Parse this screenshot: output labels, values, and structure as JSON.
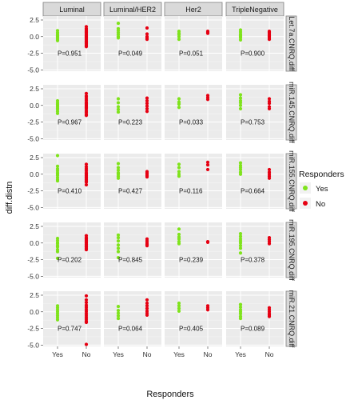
{
  "chart_data": {
    "type": "scatter",
    "xlabel": "Responders",
    "ylabel": "diff.distn",
    "ylim": [
      -5.2,
      3.1
    ],
    "yticks": [
      2.5,
      0.0,
      -2.5,
      -5.0
    ],
    "ytick_labels": [
      "2.5",
      "0.0",
      "-2.5",
      "-5.0"
    ],
    "x_categories": [
      "Yes",
      "No"
    ],
    "columns": [
      "Luminal",
      "Luminal/HER2",
      "Her2",
      "TripleNegative"
    ],
    "rows": [
      "Let.7a.CNRQ.diff",
      "miR.145.CNRQ.diff",
      "miR.155.CNRQ.diff",
      "miR.195.CNRQ.diff",
      "miR.21.CNRQ.diff"
    ],
    "legend": {
      "title": "Responders",
      "placement": "right",
      "entries": [
        {
          "label": "Yes",
          "color": "#7fe31c"
        },
        {
          "label": "No",
          "color": "#e60012"
        }
      ]
    },
    "grid": true,
    "panels": [
      [
        {
          "p": "P=0.951",
          "yes": [
            0.9,
            0.6,
            0.4,
            0.2,
            0.1,
            0.0,
            -0.1,
            -0.3,
            -0.5,
            -0.6
          ],
          "no": [
            1.5,
            1.2,
            1.0,
            0.8,
            0.6,
            0.4,
            0.2,
            0.0,
            -0.1,
            -0.3,
            -0.5,
            -0.7,
            -0.9,
            -1.1,
            -1.3,
            -1.5
          ]
        },
        {
          "p": "P=0.049",
          "yes": [
            2.0,
            1.2,
            0.9,
            0.6,
            0.3,
            0.0,
            -0.2
          ],
          "no": [
            1.3,
            0.4,
            0.0,
            -0.2,
            -0.4
          ]
        },
        {
          "p": "P=0.051",
          "yes": [
            0.8,
            0.5,
            0.3,
            0.0,
            -0.4
          ],
          "no": [
            0.8,
            0.6,
            0.5
          ]
        },
        {
          "p": "P=0.900",
          "yes": [
            1.0,
            0.7,
            0.4,
            0.2,
            0.0,
            -0.2,
            -0.5
          ],
          "no": [
            0.8,
            0.6,
            0.4,
            0.2,
            0.0,
            -0.2,
            -0.4
          ]
        }
      ],
      [
        {
          "p": "P=0.967",
          "yes": [
            0.7,
            0.4,
            0.2,
            0.0,
            -0.2,
            -0.4,
            -0.6,
            -0.9,
            -1.2
          ],
          "no": [
            1.8,
            1.4,
            1.1,
            0.8,
            0.5,
            0.3,
            0.1,
            -0.1,
            -0.3,
            -0.5,
            -0.8,
            -1.0,
            -1.3,
            -1.5
          ]
        },
        {
          "p": "P=0.223",
          "yes": [
            1.0,
            0.4,
            -0.2,
            -0.6,
            -1.0
          ],
          "no": [
            1.1,
            0.7,
            0.3,
            -0.1,
            -0.5,
            -0.9
          ]
        },
        {
          "p": "P=0.033",
          "yes": [
            1.0,
            0.5,
            0.2,
            -0.3
          ],
          "no": [
            1.5,
            1.2,
            0.9
          ]
        },
        {
          "p": "P=0.753",
          "yes": [
            1.6,
            1.1,
            0.7,
            0.4,
            0.0,
            -0.5
          ],
          "no": [
            1.0,
            0.6,
            0.3,
            -0.2,
            -0.5
          ]
        }
      ],
      [
        {
          "p": "P=0.410",
          "yes": [
            2.8,
            1.2,
            0.8,
            0.5,
            0.2,
            0.0,
            -0.2,
            -0.5,
            -0.8,
            -1.0
          ],
          "no": [
            1.5,
            1.1,
            0.8,
            0.5,
            0.2,
            0.0,
            -0.2,
            -0.4,
            -0.6,
            -0.8,
            -1.0,
            -1.2,
            -1.6
          ]
        },
        {
          "p": "P=0.427",
          "yes": [
            1.6,
            1.0,
            0.6,
            0.2,
            0.0,
            -0.3,
            -0.6
          ],
          "no": [
            0.4,
            0.2,
            0.0,
            -0.2,
            -0.4
          ]
        },
        {
          "p": "P=0.116",
          "yes": [
            1.5,
            1.0,
            0.4,
            0.0,
            -0.3
          ],
          "no": [
            1.8,
            1.4,
            0.7
          ]
        },
        {
          "p": "P=0.664",
          "yes": [
            1.7,
            1.3,
            1.0,
            0.7,
            0.3,
            0.0
          ],
          "no": [
            0.7,
            0.3,
            0.0,
            -0.3,
            -0.6
          ]
        }
      ],
      [
        {
          "p": "P=0.202",
          "yes": [
            0.7,
            0.4,
            0.1,
            -0.1,
            -0.4,
            -0.6,
            -1.0,
            -1.3,
            -2.3
          ],
          "no": [
            1.1,
            0.8,
            0.6,
            0.4,
            0.2,
            0.0,
            -0.2,
            -0.4,
            -0.6,
            -0.8,
            -1.0
          ]
        },
        {
          "p": "P=0.845",
          "yes": [
            1.2,
            0.8,
            0.3,
            -0.3,
            -0.8,
            -1.3,
            -2.2
          ],
          "no": [
            0.6,
            0.3,
            0.0,
            -0.2,
            -0.4
          ]
        },
        {
          "p": "P=0.239",
          "yes": [
            2.1,
            1.3,
            0.9,
            0.6,
            0.2,
            -0.1
          ],
          "no": [
            0.2,
            0.1
          ]
        },
        {
          "p": "P=0.378",
          "yes": [
            1.4,
            1.0,
            0.6,
            0.3,
            0.0,
            -0.4,
            -0.8,
            -1.5
          ],
          "no": [
            0.8,
            0.5,
            0.2,
            -0.1
          ]
        }
      ],
      [
        {
          "p": "P=0.747",
          "yes": [
            0.9,
            0.6,
            0.3,
            0.0,
            -0.3,
            -0.6,
            -0.9,
            -1.2
          ],
          "no": [
            2.4,
            1.8,
            1.4,
            1.0,
            0.7,
            0.4,
            0.1,
            -0.2,
            -0.5,
            -0.8,
            -1.1,
            -1.4,
            -1.6,
            -4.9
          ]
        },
        {
          "p": "P=0.064",
          "yes": [
            0.8,
            0.2,
            -0.2,
            -0.6,
            -1.0
          ],
          "no": [
            1.8,
            1.3,
            0.9,
            0.5,
            0.1,
            -0.2,
            -0.5
          ]
        },
        {
          "p": "P=0.405",
          "yes": [
            1.3,
            0.9,
            0.5,
            0.1
          ],
          "no": [
            0.9,
            0.6,
            0.3
          ]
        },
        {
          "p": "P=0.089",
          "yes": [
            1.1,
            0.7,
            0.3,
            0.0,
            -0.3,
            -0.7,
            -1.0
          ],
          "no": [
            0.6,
            0.3,
            0.0,
            -0.3,
            -0.5,
            -0.7
          ]
        }
      ]
    ]
  }
}
